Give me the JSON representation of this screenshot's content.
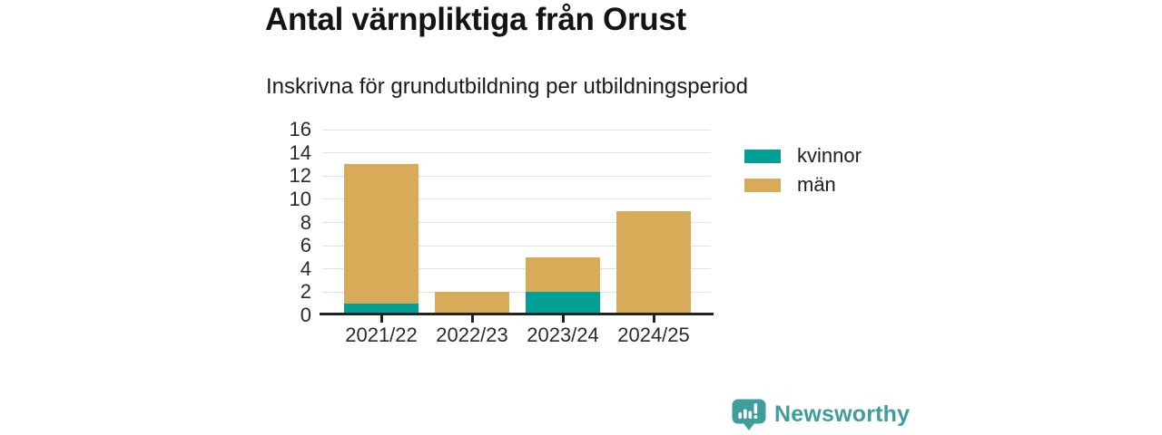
{
  "header": {
    "title": "Antal värnpliktiga från Orust",
    "subtitle": "Inskrivna för grundutbildning per utbildningsperiod"
  },
  "chart_data": {
    "type": "bar",
    "stacked": true,
    "title": "Antal värnpliktiga från Orust",
    "subtitle": "Inskrivna för grundutbildning per utbildningsperiod",
    "categories": [
      "2021/22",
      "2022/23",
      "2023/24",
      "2024/25"
    ],
    "series": [
      {
        "name": "kvinnor",
        "color": "#00a096",
        "values": [
          1,
          0,
          2,
          0
        ]
      },
      {
        "name": "män",
        "color": "#d8ab58",
        "values": [
          12,
          2,
          3,
          9
        ]
      }
    ],
    "totals": [
      13,
      2,
      5,
      9
    ],
    "xlabel": "",
    "ylabel": "",
    "ylim": [
      0,
      16
    ],
    "ytick_step": 2,
    "grid": true,
    "grid_color": "#e2e2e2",
    "axis_color": "#222222",
    "legend_position": "right"
  },
  "footer": {
    "brand": "Newsworthy",
    "brand_color": "#3f9e9c"
  }
}
